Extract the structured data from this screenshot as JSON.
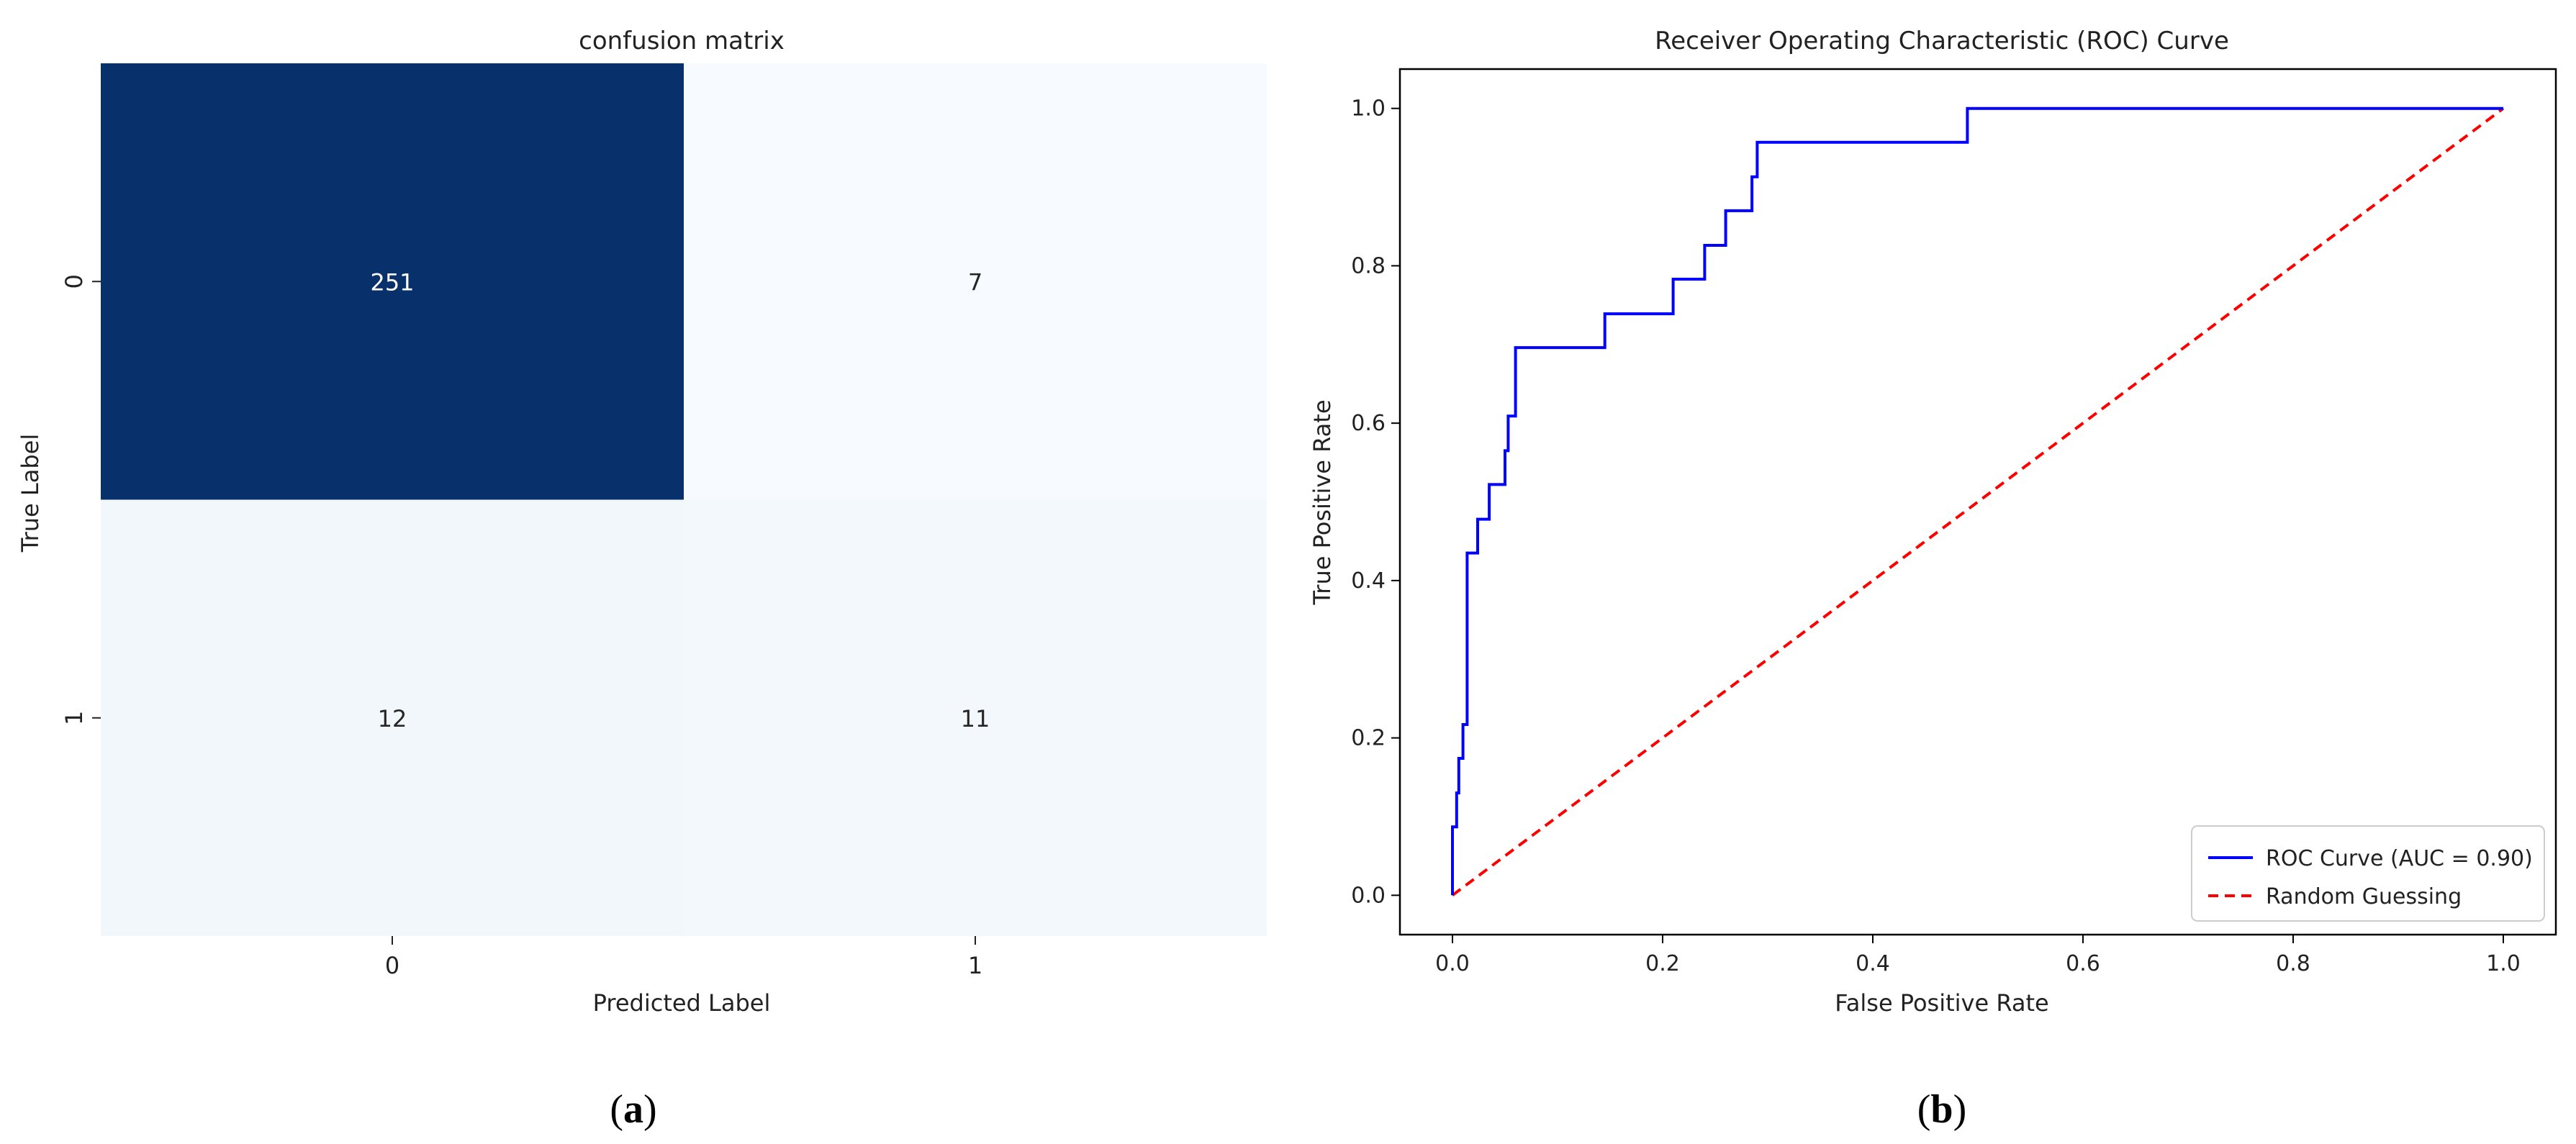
{
  "chart_data": [
    {
      "type": "heatmap",
      "panel_label": "(a)",
      "panel_letter": "a",
      "title": "confusion matrix",
      "xlabel": "Predicted Label",
      "ylabel": "True Label",
      "x_categories": [
        "0",
        "1"
      ],
      "y_categories": [
        "0",
        "1"
      ],
      "values": [
        [
          251,
          7
        ],
        [
          12,
          11
        ]
      ],
      "colormap": {
        "low": "#f7fbff",
        "high": "#08306b"
      }
    },
    {
      "type": "line",
      "panel_label": "(b)",
      "panel_letter": "b",
      "title": "Receiver Operating Characteristic (ROC) Curve",
      "xlabel": "False Positive Rate",
      "ylabel": "True Positive Rate",
      "xlim": [
        -0.05,
        1.05
      ],
      "ylim": [
        -0.05,
        1.05
      ],
      "xticks": [
        0.0,
        0.2,
        0.4,
        0.6,
        0.8,
        1.0
      ],
      "yticks": [
        0.0,
        0.2,
        0.4,
        0.6,
        0.8,
        1.0
      ],
      "tick_labels": [
        "0.0",
        "0.2",
        "0.4",
        "0.6",
        "0.8",
        "1.0"
      ],
      "legend_position": "bottom-right",
      "series": [
        {
          "name": "ROC Curve (AUC = 0.90)",
          "color": "#0000ff",
          "style": "solid",
          "x": [
            0,
            0,
            0.004,
            0.004,
            0.006,
            0.006,
            0.01,
            0.01,
            0.014,
            0.014,
            0.024,
            0.024,
            0.035,
            0.035,
            0.05,
            0.05,
            0.053,
            0.053,
            0.06,
            0.06,
            0.145,
            0.145,
            0.21,
            0.21,
            0.24,
            0.24,
            0.26,
            0.26,
            0.285,
            0.285,
            0.29,
            0.29,
            0.49,
            0.49,
            1.0
          ],
          "y": [
            0,
            0.087,
            0.087,
            0.13,
            0.13,
            0.174,
            0.174,
            0.217,
            0.217,
            0.435,
            0.435,
            0.478,
            0.478,
            0.522,
            0.522,
            0.565,
            0.565,
            0.609,
            0.609,
            0.696,
            0.696,
            0.739,
            0.739,
            0.783,
            0.783,
            0.826,
            0.826,
            0.87,
            0.87,
            0.913,
            0.913,
            0.957,
            0.957,
            1.0,
            1.0
          ]
        },
        {
          "name": "Random Guessing",
          "color": "#ff0000",
          "style": "dashed",
          "x": [
            0,
            1
          ],
          "y": [
            0,
            1
          ]
        }
      ]
    }
  ]
}
